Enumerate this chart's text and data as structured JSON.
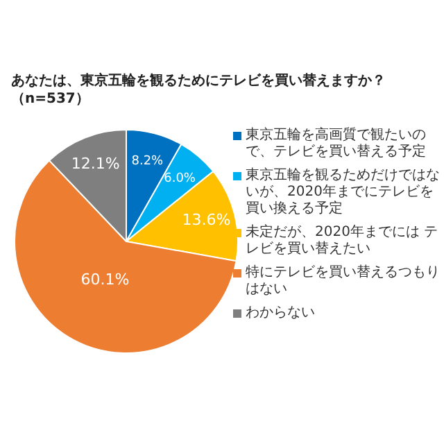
{
  "chart_data": {
    "type": "pie",
    "title": "あなたは、東京五輪を観るためにテレビを買い替えますか？",
    "subtitle": "（n=537）",
    "categories": [
      "東京五輪を高画質で観たいので、テレビを買い替える予定",
      "東京五輪を観るためだけではないが、2020年までにテレビを買い換える予定",
      "未定だが、2020年までには テレビを買い替えたい",
      "特にテレビを買い替えるつもりはない",
      "わからない"
    ],
    "values": [
      8.2,
      6.0,
      13.6,
      60.1,
      12.1
    ],
    "colors": [
      "#0070c0",
      "#00b0f0",
      "#ffc000",
      "#ed7d31",
      "#7f7f7f"
    ],
    "value_labels": [
      "8.2%",
      "6.0%",
      "13.6%",
      "60.1%",
      "12.1%"
    ],
    "legend": "right"
  }
}
